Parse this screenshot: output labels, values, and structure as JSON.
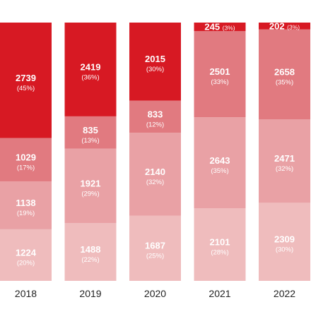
{
  "chart_data": {
    "type": "bar",
    "stacked": "percent",
    "categories": [
      "2018",
      "2019",
      "2020",
      "2021",
      "2022"
    ],
    "series": [
      {
        "values": [
          1224,
          1488,
          1687,
          2101,
          2309
        ],
        "percents": [
          "(20%)",
          "(22%)",
          "(25%)",
          "(28%)",
          "(30%)"
        ],
        "color": "#efbcbd",
        "labels_inside": [
          true,
          true,
          true,
          true,
          true
        ]
      },
      {
        "values": [
          1138,
          1921,
          2140,
          2643,
          2471
        ],
        "percents": [
          "(19%)",
          "(29%)",
          "(32%)",
          "(35%)",
          "(32%)"
        ],
        "color": "#e9a1a5",
        "labels_inside": [
          true,
          true,
          true,
          true,
          true
        ]
      },
      {
        "values": [
          1029,
          835,
          833,
          2501,
          2658
        ],
        "percents": [
          "(17%)",
          "(13%)",
          "(12%)",
          "(33%)",
          "(35%)"
        ],
        "color": "#e17a80",
        "labels_inside": [
          true,
          true,
          true,
          true,
          true
        ]
      },
      {
        "values": [
          2739,
          2419,
          2015,
          245,
          202
        ],
        "percents": [
          "(45%)",
          "(36%)",
          "(30%)",
          "(3%)",
          "(3%)"
        ],
        "color": "#d71923",
        "labels_inside": [
          true,
          true,
          true,
          true,
          true
        ]
      }
    ],
    "colors": {
      "tick_label": "#222222",
      "value_label": "#ffffff"
    }
  }
}
